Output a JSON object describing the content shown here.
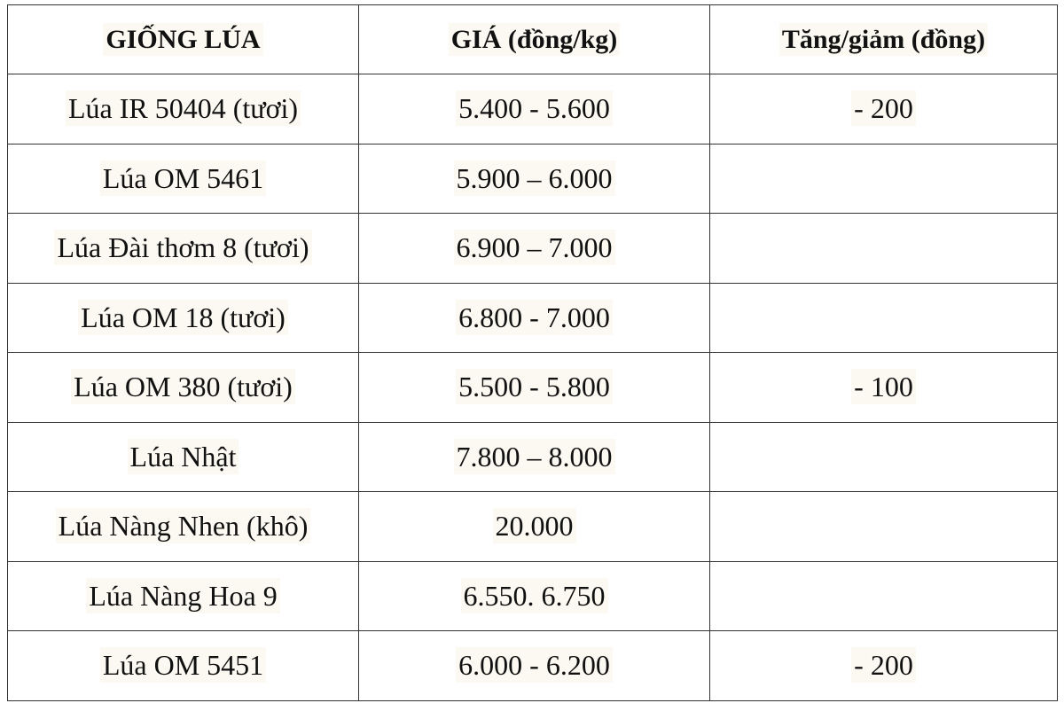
{
  "table": {
    "header": [
      "GIỐNG LÚA",
      "GIÁ (đồng/kg)",
      "Tăng/giảm (đồng)"
    ],
    "rows": [
      [
        "Lúa IR 50404 (tươi)",
        "5.400 - 5.600",
        "- 200"
      ],
      [
        "Lúa OM 5461",
        "5.900 – 6.000",
        null
      ],
      [
        "Lúa Đài thơm 8 (tươi)",
        "6.900 – 7.000",
        null
      ],
      [
        "Lúa OM 18 (tươi)",
        "6.800 - 7.000",
        null
      ],
      [
        "Lúa OM 380 (tươi)",
        "5.500 - 5.800",
        "- 100"
      ],
      [
        "Lúa Nhật",
        "7.800 – 8.000",
        null
      ],
      [
        "Lúa Nàng Nhen (khô)",
        "20.000",
        null
      ],
      [
        "Lúa Nàng Hoa 9",
        "6.550. 6.750",
        null
      ],
      [
        "Lúa OM 5451",
        "6.000 - 6.200",
        "- 200"
      ]
    ]
  }
}
